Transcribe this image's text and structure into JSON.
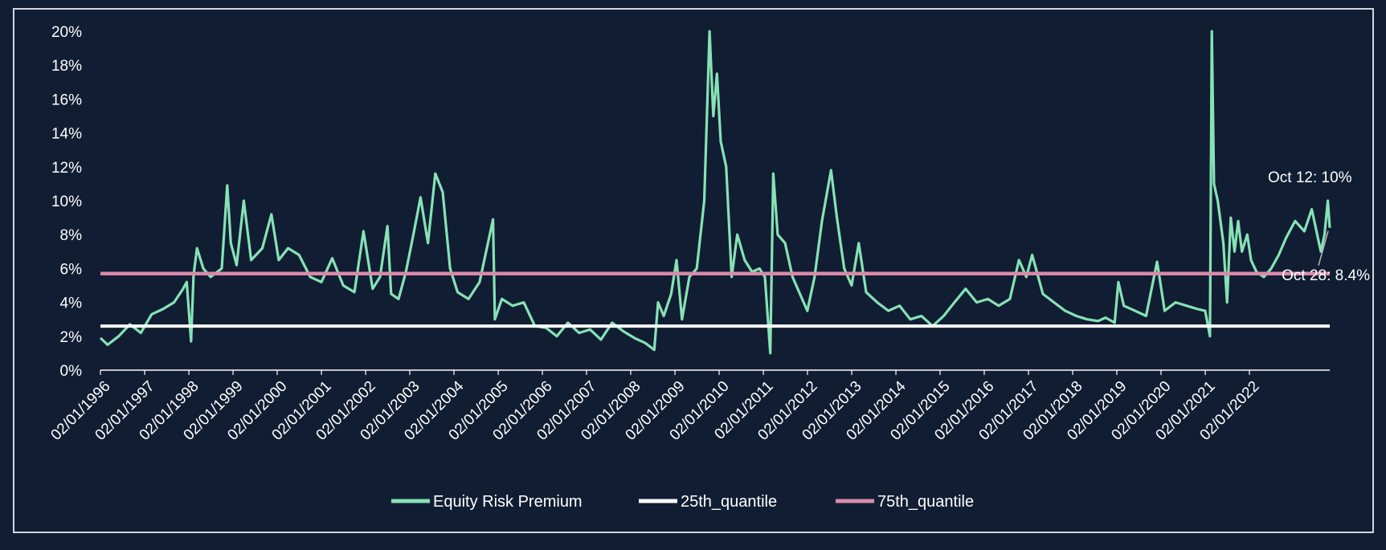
{
  "colors": {
    "background": "#111d33",
    "frame": "#cfd6e2",
    "axis_text": "#ffffff",
    "erp": "#86e2b5",
    "q25": "#ffffff",
    "q75": "#d98aa8",
    "connector": "#b8b8b8"
  },
  "chart_data": {
    "type": "line",
    "title": "",
    "xlabel": "",
    "ylabel": "",
    "ylim": [
      0,
      20
    ],
    "yticks": [
      "0%",
      "2%",
      "4%",
      "6%",
      "8%",
      "10%",
      "12%",
      "14%",
      "16%",
      "18%",
      "20%"
    ],
    "xlim": [
      "1996-01-02",
      "2022-10-28"
    ],
    "xticks": [
      "02/01/1996",
      "02/01/1997",
      "02/01/1998",
      "02/01/1999",
      "02/01/2000",
      "02/01/2001",
      "02/01/2002",
      "02/01/2003",
      "02/01/2004",
      "02/01/2005",
      "02/01/2006",
      "02/01/2007",
      "02/01/2008",
      "02/01/2009",
      "02/01/2010",
      "02/01/2011",
      "02/01/2012",
      "02/01/2013",
      "02/01/2014",
      "02/01/2015",
      "02/01/2016",
      "02/01/2017",
      "02/01/2018",
      "02/01/2019",
      "02/01/2020",
      "02/01/2021",
      "02/01/2022"
    ],
    "grid": false,
    "legend_position": "bottom",
    "series": [
      {
        "name": "Equity Risk Premium",
        "color": "#86e2b5",
        "points": [
          [
            "1996-01-02",
            1.9
          ],
          [
            "1996-03-01",
            1.5
          ],
          [
            "1996-06-01",
            2.0
          ],
          [
            "1996-09-01",
            2.7
          ],
          [
            "1996-12-01",
            2.2
          ],
          [
            "1997-03-01",
            3.3
          ],
          [
            "1997-06-01",
            3.6
          ],
          [
            "1997-09-01",
            4.0
          ],
          [
            "1997-11-15",
            4.8
          ],
          [
            "1997-12-15",
            5.2
          ],
          [
            "1998-01-20",
            1.7
          ],
          [
            "1998-02-10",
            5.6
          ],
          [
            "1998-03-10",
            7.2
          ],
          [
            "1998-05-01",
            6.0
          ],
          [
            "1998-07-01",
            5.5
          ],
          [
            "1998-10-01",
            6.0
          ],
          [
            "1998-11-15",
            10.9
          ],
          [
            "1998-12-15",
            7.5
          ],
          [
            "1999-02-01",
            6.2
          ],
          [
            "1999-04-01",
            10.0
          ],
          [
            "1999-06-01",
            6.5
          ],
          [
            "1999-09-01",
            7.2
          ],
          [
            "1999-11-15",
            9.2
          ],
          [
            "2000-01-15",
            6.5
          ],
          [
            "2000-04-01",
            7.2
          ],
          [
            "2000-07-01",
            6.8
          ],
          [
            "2000-10-01",
            5.5
          ],
          [
            "2001-01-01",
            5.2
          ],
          [
            "2001-04-01",
            6.6
          ],
          [
            "2001-07-01",
            5.0
          ],
          [
            "2001-10-01",
            4.6
          ],
          [
            "2001-12-15",
            8.2
          ],
          [
            "2002-03-01",
            4.8
          ],
          [
            "2002-05-01",
            5.5
          ],
          [
            "2002-07-01",
            8.5
          ],
          [
            "2002-08-01",
            4.5
          ],
          [
            "2002-10-01",
            4.2
          ],
          [
            "2002-12-01",
            5.8
          ],
          [
            "2003-02-01",
            8.0
          ],
          [
            "2003-04-01",
            10.2
          ],
          [
            "2003-06-01",
            7.5
          ],
          [
            "2003-08-01",
            11.6
          ],
          [
            "2003-10-01",
            10.5
          ],
          [
            "2003-12-01",
            6.0
          ],
          [
            "2004-02-01",
            4.6
          ],
          [
            "2004-05-01",
            4.2
          ],
          [
            "2004-08-01",
            5.2
          ],
          [
            "2004-11-20",
            8.9
          ],
          [
            "2004-12-05",
            3.0
          ],
          [
            "2005-02-01",
            4.2
          ],
          [
            "2005-05-01",
            3.8
          ],
          [
            "2005-08-01",
            4.0
          ],
          [
            "2005-11-01",
            2.6
          ],
          [
            "2006-02-01",
            2.5
          ],
          [
            "2006-05-01",
            2.0
          ],
          [
            "2006-08-01",
            2.8
          ],
          [
            "2006-11-01",
            2.2
          ],
          [
            "2007-02-01",
            2.4
          ],
          [
            "2007-05-01",
            1.8
          ],
          [
            "2007-08-01",
            2.8
          ],
          [
            "2007-11-01",
            2.3
          ],
          [
            "2008-02-01",
            1.9
          ],
          [
            "2008-05-01",
            1.6
          ],
          [
            "2008-07-15",
            1.2
          ],
          [
            "2008-08-15",
            4.0
          ],
          [
            "2008-10-01",
            3.2
          ],
          [
            "2008-12-01",
            4.5
          ],
          [
            "2009-01-15",
            6.5
          ],
          [
            "2009-03-01",
            3.0
          ],
          [
            "2009-05-01",
            5.5
          ],
          [
            "2009-07-01",
            6.0
          ],
          [
            "2009-09-01",
            10.0
          ],
          [
            "2009-10-15",
            20.0
          ],
          [
            "2009-11-15",
            15.0
          ],
          [
            "2009-12-15",
            17.5
          ],
          [
            "2010-01-15",
            13.5
          ],
          [
            "2010-03-01",
            12.0
          ],
          [
            "2010-04-15",
            5.5
          ],
          [
            "2010-06-01",
            8.0
          ],
          [
            "2010-08-01",
            6.5
          ],
          [
            "2010-10-01",
            5.8
          ],
          [
            "2010-12-01",
            6.0
          ],
          [
            "2011-01-15",
            5.5
          ],
          [
            "2011-03-01",
            1.0
          ],
          [
            "2011-03-25",
            11.6
          ],
          [
            "2011-05-01",
            8.0
          ],
          [
            "2011-07-01",
            7.5
          ],
          [
            "2011-09-01",
            5.5
          ],
          [
            "2011-11-01",
            4.5
          ],
          [
            "2012-01-01",
            3.5
          ],
          [
            "2012-03-01",
            5.5
          ],
          [
            "2012-05-01",
            8.8
          ],
          [
            "2012-07-15",
            11.8
          ],
          [
            "2012-09-01",
            9.0
          ],
          [
            "2012-11-01",
            6.0
          ],
          [
            "2013-01-01",
            5.0
          ],
          [
            "2013-03-01",
            7.5
          ],
          [
            "2013-05-01",
            4.6
          ],
          [
            "2013-08-01",
            4.0
          ],
          [
            "2013-11-01",
            3.5
          ],
          [
            "2014-02-01",
            3.8
          ],
          [
            "2014-05-01",
            3.0
          ],
          [
            "2014-08-01",
            3.2
          ],
          [
            "2014-11-01",
            2.6
          ],
          [
            "2015-02-01",
            3.2
          ],
          [
            "2015-05-01",
            4.0
          ],
          [
            "2015-08-01",
            4.8
          ],
          [
            "2015-11-01",
            4.0
          ],
          [
            "2016-02-01",
            4.2
          ],
          [
            "2016-05-01",
            3.8
          ],
          [
            "2016-08-01",
            4.2
          ],
          [
            "2016-10-15",
            6.5
          ],
          [
            "2016-12-15",
            5.5
          ],
          [
            "2017-02-01",
            6.8
          ],
          [
            "2017-05-01",
            4.5
          ],
          [
            "2017-08-01",
            4.0
          ],
          [
            "2017-11-01",
            3.5
          ],
          [
            "2018-02-01",
            3.2
          ],
          [
            "2018-05-01",
            3.0
          ],
          [
            "2018-08-01",
            2.9
          ],
          [
            "2018-10-01",
            3.1
          ],
          [
            "2018-12-15",
            2.8
          ],
          [
            "2019-01-15",
            5.2
          ],
          [
            "2019-03-01",
            3.8
          ],
          [
            "2019-06-01",
            3.5
          ],
          [
            "2019-09-01",
            3.2
          ],
          [
            "2019-12-01",
            6.4
          ],
          [
            "2020-02-01",
            3.5
          ],
          [
            "2020-05-01",
            4.0
          ],
          [
            "2020-08-01",
            3.8
          ],
          [
            "2020-11-01",
            3.6
          ],
          [
            "2021-01-01",
            3.5
          ],
          [
            "2021-02-10",
            2.0
          ],
          [
            "2021-02-25",
            20.0
          ],
          [
            "2021-03-15",
            11.0
          ],
          [
            "2021-04-15",
            10.0
          ],
          [
            "2021-06-01",
            7.5
          ],
          [
            "2021-07-01",
            4.0
          ],
          [
            "2021-08-01",
            9.0
          ],
          [
            "2021-09-01",
            7.0
          ],
          [
            "2021-10-01",
            8.8
          ],
          [
            "2021-11-01",
            7.0
          ],
          [
            "2021-12-15",
            8.0
          ],
          [
            "2022-01-15",
            6.5
          ],
          [
            "2022-03-01",
            5.8
          ],
          [
            "2022-05-01",
            5.5
          ],
          [
            "2022-07-01",
            6.0
          ],
          [
            "2022-09-01",
            6.8
          ],
          [
            "2022-11-01",
            7.8
          ],
          [
            "2023-01-15",
            8.8
          ],
          [
            "2023-04-01",
            8.2
          ],
          [
            "2023-06-01",
            9.5
          ],
          [
            "2023-08-15",
            7.0
          ],
          [
            "2023-09-15",
            8.0
          ],
          [
            "2023-10-12",
            10.0
          ],
          [
            "2023-10-28",
            8.4
          ]
        ]
      },
      {
        "name": "25th_quantile",
        "color": "#ffffff",
        "values": [
          2.6
        ]
      },
      {
        "name": "75th_quantile",
        "color": "#d98aa8",
        "values": [
          5.7
        ]
      }
    ],
    "annotations": [
      {
        "text": "Oct 12: 10%",
        "x": "2023-10-12",
        "y": 10.0
      },
      {
        "text": "Oct 28: 8.4%",
        "x": "2023-10-28",
        "y": 8.4
      }
    ]
  }
}
